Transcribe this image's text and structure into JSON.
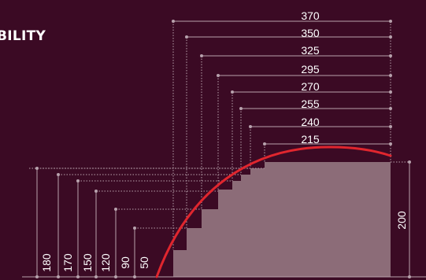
{
  "title": "BILITY",
  "colors": {
    "background": "#3b0a24",
    "profile_fill": "#8c6c78",
    "curve": "#e0262e",
    "dimension_line": "#b8a2ad",
    "text": "#ffffff"
  },
  "top_dimensions": [
    {
      "label": "370",
      "data-name": "dim-370"
    },
    {
      "label": "350",
      "data-name": "dim-350"
    },
    {
      "label": "325",
      "data-name": "dim-325"
    },
    {
      "label": "295",
      "data-name": "dim-295"
    },
    {
      "label": "270",
      "data-name": "dim-270"
    },
    {
      "label": "255",
      "data-name": "dim-255"
    },
    {
      "label": "240",
      "data-name": "dim-240"
    },
    {
      "label": "215",
      "data-name": "dim-215"
    }
  ],
  "left_dimensions": [
    {
      "label": "180"
    },
    {
      "label": "170"
    },
    {
      "label": "150"
    },
    {
      "label": "120"
    },
    {
      "label": "90"
    },
    {
      "label": "50"
    }
  ],
  "right_dimension": {
    "label": "200"
  }
}
